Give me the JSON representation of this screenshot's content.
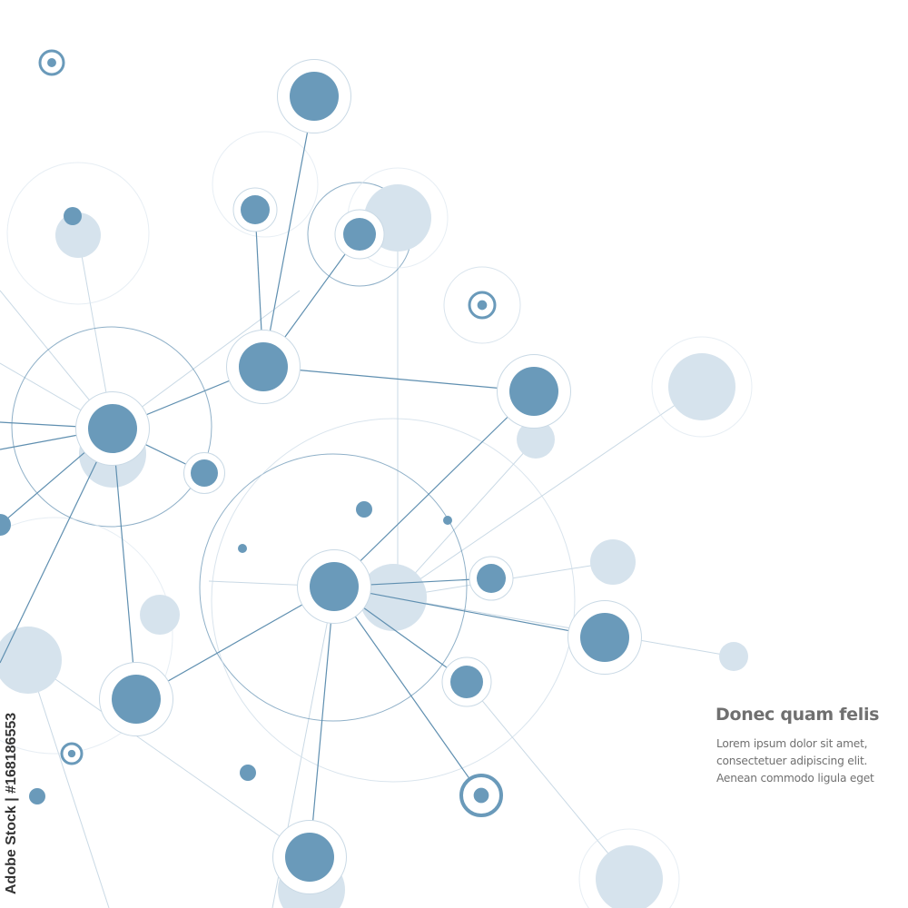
{
  "text_block": {
    "title": "Donec quam felis",
    "lines": [
      "Lorem ipsum dolor sit amet,",
      "consectetuer adipiscing elit.",
      "Aenean commodo ligula eget"
    ]
  },
  "watermark": "Adobe Stock | #168186553",
  "colors": {
    "node_dark": "#6a9aba",
    "node_light": "#d6e3ed",
    "line": "#5f8fb0",
    "text": "#707070"
  }
}
